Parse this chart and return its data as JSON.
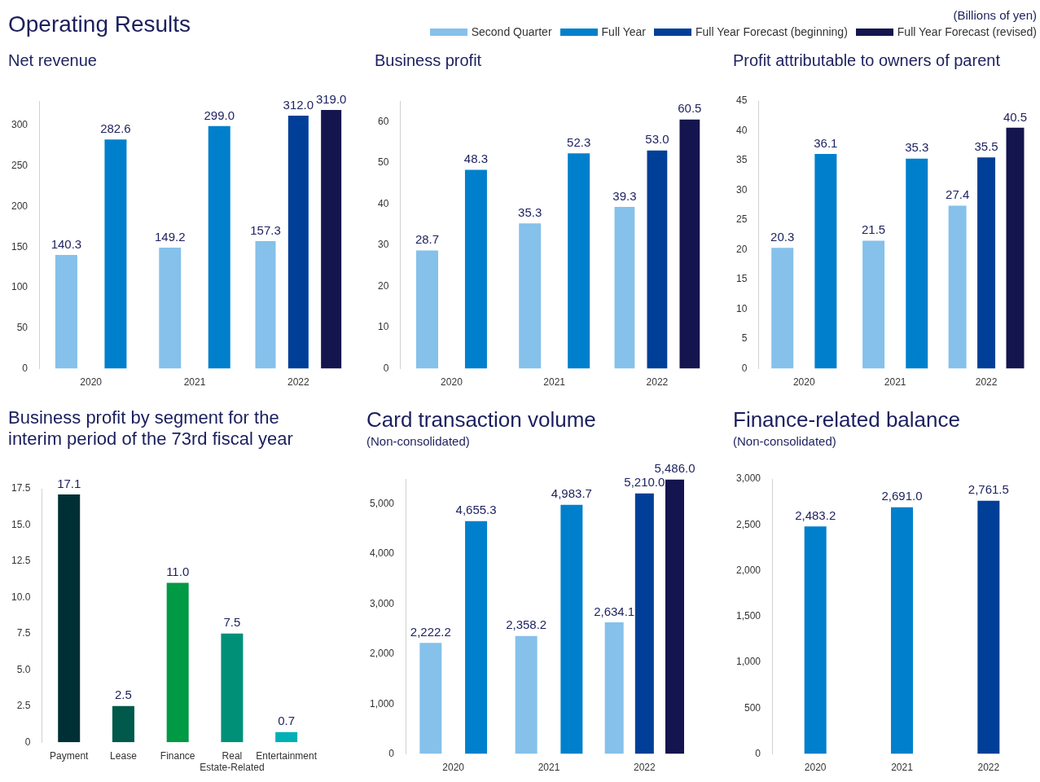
{
  "chart_data": [
    {
      "type": "bar",
      "title": "Net revenue",
      "annotations": [
        "Operating Results",
        "(Billions of yen)"
      ],
      "categories": [
        "2020",
        "2021",
        "2022"
      ],
      "legend": "top right",
      "series": [
        {
          "name": "Second Quarter",
          "color": "#85c1ea",
          "values": [
            140.3,
            149.2,
            157.3
          ],
          "value_labels": [
            "140.3",
            "149.2",
            "157.3"
          ]
        },
        {
          "name": "Full Year",
          "color": "#0080cc",
          "values": [
            282.6,
            299.0,
            null
          ],
          "value_labels": [
            "282.6",
            "299.0",
            null
          ]
        },
        {
          "name": "Full Year Forecast (beginning)",
          "color": "#003f98",
          "values": [
            null,
            null,
            312.0
          ],
          "value_labels": [
            null,
            null,
            "312.0"
          ]
        },
        {
          "name": "Full Year Forecast (revised)",
          "color": "#14144f",
          "values": [
            null,
            null,
            319.0
          ],
          "value_labels": [
            null,
            null,
            "319.0"
          ]
        }
      ],
      "ylim": [
        0,
        330
      ],
      "yticks": [
        0,
        50,
        100,
        150,
        200,
        250,
        300
      ]
    },
    {
      "type": "bar",
      "title": "Business profit",
      "categories": [
        "2020",
        "2021",
        "2022"
      ],
      "series": [
        {
          "color": "#85c1ea",
          "values": [
            28.7,
            35.3,
            39.3
          ],
          "value_labels": [
            "28.7",
            "35.3",
            "39.3"
          ]
        },
        {
          "color": "#0080cc",
          "values": [
            48.3,
            52.3,
            null
          ],
          "value_labels": [
            "48.3",
            "52.3",
            null
          ]
        },
        {
          "color": "#003f98",
          "values": [
            null,
            null,
            53.0
          ],
          "value_labels": [
            null,
            null,
            "53.0"
          ]
        },
        {
          "color": "#14144f",
          "values": [
            null,
            null,
            60.5
          ],
          "value_labels": [
            null,
            null,
            "60.5"
          ]
        }
      ],
      "ylim": [
        0,
        65
      ],
      "yticks": [
        0,
        10,
        20,
        30,
        40,
        50,
        60
      ]
    },
    {
      "type": "bar",
      "title": "Profit attributable to owners of parent",
      "categories": [
        "2020",
        "2021",
        "2022"
      ],
      "series": [
        {
          "color": "#85c1ea",
          "values": [
            20.3,
            21.5,
            27.4
          ],
          "value_labels": [
            "20.3",
            "21.5",
            "27.4"
          ]
        },
        {
          "color": "#0080cc",
          "values": [
            36.1,
            35.3,
            null
          ],
          "value_labels": [
            "36.1",
            "35.3",
            null
          ]
        },
        {
          "color": "#003f98",
          "values": [
            null,
            null,
            35.5
          ],
          "value_labels": [
            null,
            null,
            "35.5"
          ]
        },
        {
          "color": "#14144f",
          "values": [
            null,
            null,
            40.5
          ],
          "value_labels": [
            null,
            null,
            "40.5"
          ]
        }
      ],
      "ylim": [
        0,
        45
      ],
      "yticks": [
        0,
        5,
        10,
        15,
        20,
        25,
        30,
        35,
        40,
        45
      ]
    },
    {
      "type": "bar",
      "title": "Business profit by segment for the interim period of the 73rd fiscal year",
      "categories": [
        "Payment",
        "Lease",
        "Finance",
        "Real Estate-Related",
        "Entertainment"
      ],
      "values": [
        17.1,
        2.5,
        11.0,
        7.5,
        0.7
      ],
      "value_labels": [
        "17.1",
        "2.5",
        "11.0",
        "7.5",
        "0.7"
      ],
      "colors": [
        "#003036",
        "#00594a",
        "#009944",
        "#009078",
        "#00b0b5"
      ],
      "ylim": [
        0,
        17.5
      ],
      "yticks": [
        0,
        2.5,
        {
          "value": 5,
          "label": "5.0"
        },
        7.5,
        {
          "value": 10,
          "label": "10.0"
        },
        12.5,
        {
          "value": 15,
          "label": "15.0"
        },
        17.5
      ]
    },
    {
      "type": "bar",
      "title": "Card transaction volume",
      "subtitle": "(Non-consolidated)",
      "categories": [
        "2020",
        "2021",
        "2022"
      ],
      "series": [
        {
          "color": "#85c1ea",
          "values": [
            2222.2,
            2358.2,
            2634.1
          ],
          "value_labels": [
            "2,222.2",
            "2,358.2",
            "2,634.1"
          ]
        },
        {
          "color": "#0080cc",
          "values": [
            4655.3,
            4983.7,
            null
          ],
          "value_labels": [
            "4,655.3",
            "4,983.7",
            null
          ]
        },
        {
          "color": "#003f98",
          "values": [
            null,
            null,
            5210.0
          ],
          "value_labels": [
            null,
            null,
            "5,210.0"
          ]
        },
        {
          "color": "#14144f",
          "values": [
            null,
            null,
            5486.0
          ],
          "value_labels": [
            null,
            null,
            "5,486.0"
          ]
        }
      ],
      "ylim": [
        0,
        5500
      ],
      "yticks": [
        0,
        {
          "value": 1000,
          "label": "1,000"
        },
        {
          "value": 2000,
          "label": "2,000"
        },
        {
          "value": 3000,
          "label": "3,000"
        },
        {
          "value": 4000,
          "label": "4,000"
        },
        {
          "value": 5000,
          "label": "5,000"
        }
      ]
    },
    {
      "type": "bar",
      "title": "Finance-related balance",
      "subtitle": "(Non-consolidated)",
      "categories": [
        "2020",
        "2021",
        "2022"
      ],
      "series": [
        {
          "color": "#0080cc",
          "values": [
            2483.2,
            2691.0,
            null
          ],
          "value_labels": [
            "2,483.2",
            "2,691.0",
            null
          ]
        },
        {
          "color": "#003f98",
          "values": [
            null,
            null,
            2761.5
          ],
          "value_labels": [
            null,
            null,
            "2,761.5"
          ]
        }
      ],
      "ylim": [
        0,
        3000
      ],
      "yticks": [
        0,
        500,
        {
          "value": 1000,
          "label": "1,000"
        },
        {
          "value": 1500,
          "label": "1,500"
        },
        {
          "value": 2000,
          "label": "2,000"
        },
        {
          "value": 2500,
          "label": "2,500"
        },
        {
          "value": 3000,
          "label": "3,000"
        }
      ]
    }
  ]
}
